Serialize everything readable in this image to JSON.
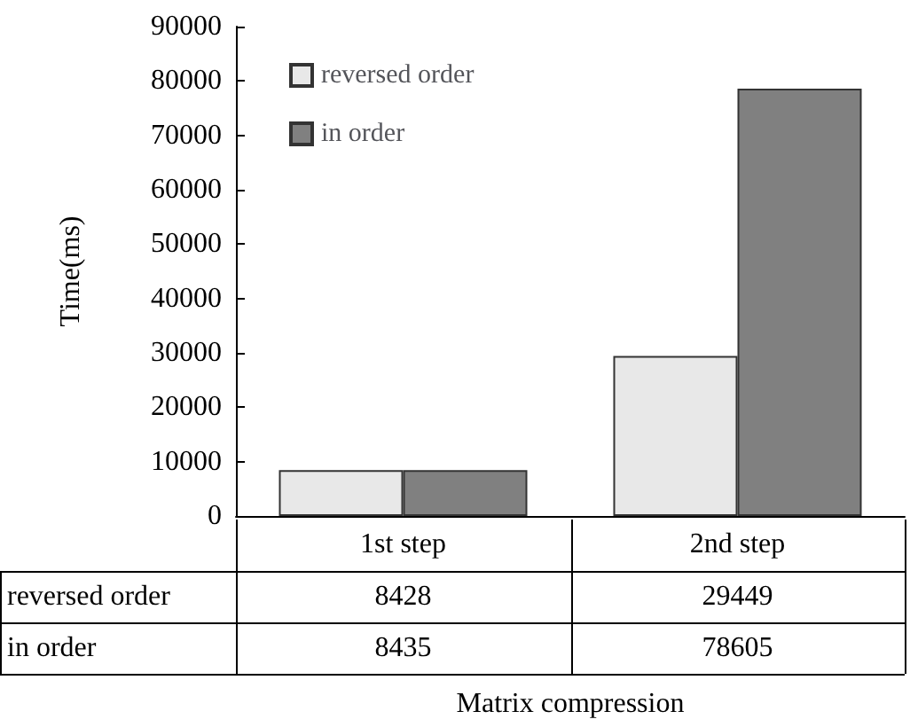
{
  "chart_data": {
    "type": "bar",
    "xlabel": "Matrix compression",
    "ylabel": "Time(ms)",
    "categories": [
      "1st step",
      "2nd step"
    ],
    "series": [
      {
        "name": "reversed order",
        "color": "#e8e8e8",
        "values": [
          8428,
          29449
        ]
      },
      {
        "name": "in order",
        "color": "#808080",
        "values": [
          8435,
          78605
        ]
      }
    ],
    "ylim": [
      0,
      90000
    ],
    "yticks": [
      0,
      10000,
      20000,
      30000,
      40000,
      50000,
      60000,
      70000,
      80000,
      90000
    ],
    "grid": false,
    "legend": "top left",
    "data_labels": true
  }
}
